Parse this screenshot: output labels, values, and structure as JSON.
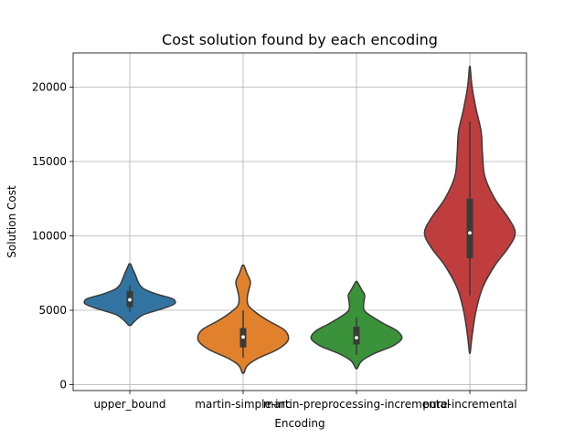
{
  "chart_data": {
    "type": "violin",
    "title": "Cost solution found by each encoding",
    "xlabel": "Encoding",
    "ylabel": "Solution Cost",
    "ylim": [
      -400,
      22300
    ],
    "yticks": [
      0,
      5000,
      10000,
      15000,
      20000
    ],
    "grid": true,
    "categories": [
      "upper_bound",
      "martin-simple-inc",
      "martin-preprocessing-incremental",
      "pure-incremental"
    ],
    "series": [
      {
        "category": "upper_bound",
        "color": "#3274a1",
        "range": [
          4000,
          8100
        ],
        "median": 5700,
        "q1": 5200,
        "q3": 6300,
        "whisker": [
          4900,
          6700
        ],
        "density": [
          [
            4000,
            0.03
          ],
          [
            4300,
            0.12
          ],
          [
            4700,
            0.3
          ],
          [
            5100,
            0.72
          ],
          [
            5400,
            0.97
          ],
          [
            5600,
            1.0
          ],
          [
            5800,
            0.92
          ],
          [
            6100,
            0.58
          ],
          [
            6400,
            0.33
          ],
          [
            6700,
            0.22
          ],
          [
            7000,
            0.17
          ],
          [
            7400,
            0.12
          ],
          [
            7800,
            0.06
          ],
          [
            8100,
            0.02
          ]
        ]
      },
      {
        "category": "martin-simple-inc",
        "color": "#e1812c",
        "range": [
          800,
          8000
        ],
        "median": 3200,
        "q1": 2500,
        "q3": 3800,
        "whisker": [
          1800,
          5000
        ],
        "density": [
          [
            800,
            0.02
          ],
          [
            1300,
            0.1
          ],
          [
            1800,
            0.35
          ],
          [
            2300,
            0.72
          ],
          [
            2800,
            0.95
          ],
          [
            3200,
            1.0
          ],
          [
            3700,
            0.9
          ],
          [
            4300,
            0.55
          ],
          [
            4800,
            0.3
          ],
          [
            5300,
            0.12
          ],
          [
            5800,
            0.09
          ],
          [
            6300,
            0.12
          ],
          [
            6900,
            0.16
          ],
          [
            7500,
            0.08
          ],
          [
            8000,
            0.02
          ]
        ]
      },
      {
        "category": "martin-preprocessing-incremental",
        "color": "#3a923a",
        "range": [
          1100,
          6900
        ],
        "median": 3150,
        "q1": 2700,
        "q3": 3900,
        "whisker": [
          2000,
          4500
        ],
        "density": [
          [
            1100,
            0.02
          ],
          [
            1600,
            0.12
          ],
          [
            2100,
            0.4
          ],
          [
            2600,
            0.8
          ],
          [
            3100,
            1.0
          ],
          [
            3600,
            0.9
          ],
          [
            4100,
            0.6
          ],
          [
            4600,
            0.33
          ],
          [
            5000,
            0.17
          ],
          [
            5500,
            0.16
          ],
          [
            6000,
            0.18
          ],
          [
            6400,
            0.11
          ],
          [
            6900,
            0.02
          ]
        ]
      },
      {
        "category": "pure-incremental",
        "color": "#c03d3e",
        "range": [
          2200,
          21300
        ],
        "median": 10200,
        "q1": 8500,
        "q3": 12500,
        "whisker": [
          6000,
          17700
        ],
        "density": [
          [
            2200,
            0.01
          ],
          [
            3500,
            0.06
          ],
          [
            5000,
            0.14
          ],
          [
            6500,
            0.28
          ],
          [
            8000,
            0.55
          ],
          [
            9200,
            0.85
          ],
          [
            10200,
            1.0
          ],
          [
            11200,
            0.85
          ],
          [
            12500,
            0.55
          ],
          [
            14000,
            0.33
          ],
          [
            15500,
            0.28
          ],
          [
            17000,
            0.25
          ],
          [
            18500,
            0.14
          ],
          [
            20000,
            0.05
          ],
          [
            21300,
            0.01
          ]
        ]
      }
    ]
  }
}
